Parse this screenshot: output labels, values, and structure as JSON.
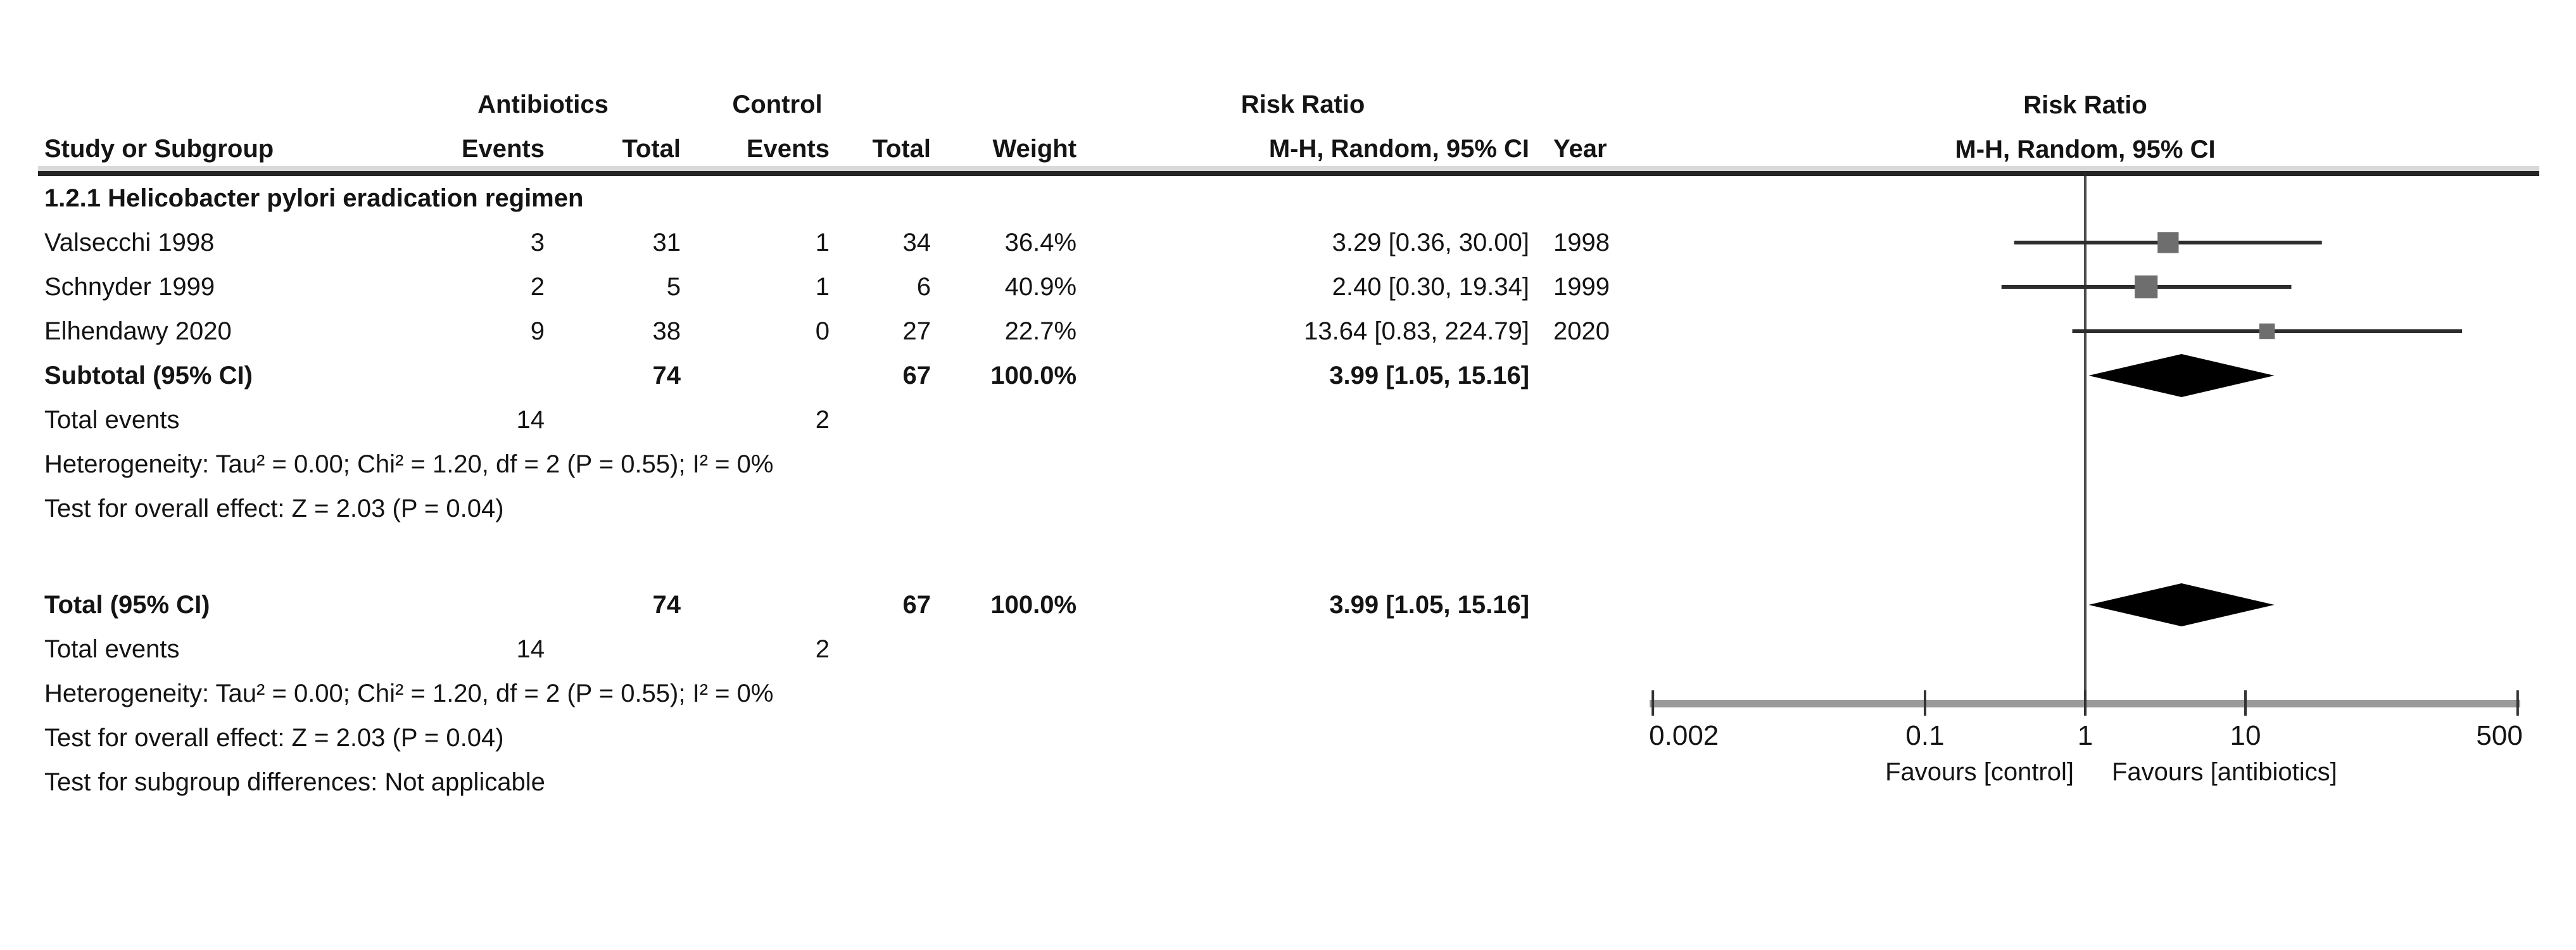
{
  "figure": {
    "header": {
      "group_antibiotics": "Antibiotics",
      "group_control": "Control",
      "group_risk_ratio": "Risk Ratio",
      "columns": [
        "Study or Subgroup",
        "Events",
        "Total",
        "Events",
        "Total",
        "Weight",
        "M-H, Random, 95% CI",
        "Year"
      ],
      "plot_title_line1": "Risk Ratio",
      "plot_title_line2": "M-H, Random, 95% CI"
    },
    "subgroup_label": "1.2.1 Helicobacter pylori eradication regimen",
    "subgroup_stats": {
      "total_events_label": "Total events",
      "events_antibiotics": "14",
      "events_control": "2",
      "heterogeneity": "Heterogeneity: Tau² = 0.00; Chi² = 1.20, df = 2 (P = 0.55); I² = 0%",
      "overall_effect": "Test for overall effect: Z = 2.03 (P = 0.04)"
    },
    "total_stats": {
      "total_events_label": "Total events",
      "events_antibiotics": "14",
      "events_control": "2",
      "heterogeneity": "Heterogeneity: Tau² = 0.00; Chi² = 1.20, df = 2 (P = 0.55); I² = 0%",
      "overall_effect": "Test for overall effect: Z = 2.03 (P = 0.04)",
      "subgroup_differences": "Test for subgroup differences: Not applicable"
    }
  },
  "chart_data": {
    "type": "forest",
    "effect_measure": "Risk Ratio",
    "method": "M-H, Random, 95% CI",
    "x_scale": "log",
    "studies": [
      {
        "name": "Valsecchi 1998",
        "events_antibiotics": "3",
        "total_antibiotics": "31",
        "events_control": "1",
        "total_control": "34",
        "weight": "36.4%",
        "estimate_text": "3.29 [0.36, 30.00]",
        "rr": 3.29,
        "ci_low": 0.36,
        "ci_high": 30.0,
        "year": "1998"
      },
      {
        "name": "Schnyder 1999",
        "events_antibiotics": "2",
        "total_antibiotics": "5",
        "events_control": "1",
        "total_control": "6",
        "weight": "40.9%",
        "estimate_text": "2.40 [0.30, 19.34]",
        "rr": 2.4,
        "ci_low": 0.3,
        "ci_high": 19.34,
        "year": "1999"
      },
      {
        "name": "Elhendawy 2020",
        "events_antibiotics": "9",
        "total_antibiotics": "38",
        "events_control": "0",
        "total_control": "27",
        "weight": "22.7%",
        "estimate_text": "13.64 [0.83, 224.79]",
        "rr": 13.64,
        "ci_low": 0.83,
        "ci_high": 224.79,
        "year": "2020"
      }
    ],
    "subtotal": {
      "label": "Subtotal (95% CI)",
      "total_antibiotics": "74",
      "total_control": "67",
      "weight": "100.0%",
      "estimate_text": "3.99 [1.05, 15.16]",
      "rr": 3.99,
      "ci_low": 1.05,
      "ci_high": 15.16
    },
    "total": {
      "label": "Total (95% CI)",
      "total_antibiotics": "74",
      "total_control": "67",
      "weight": "100.0%",
      "estimate_text": "3.99 [1.05, 15.16]",
      "rr": 3.99,
      "ci_low": 1.05,
      "ci_high": 15.16
    },
    "axis": {
      "ticks": [
        0.002,
        0.1,
        1,
        10,
        500
      ],
      "tick_labels": [
        "0.002",
        "0.1",
        "1",
        "10",
        "500"
      ],
      "null_value": 1,
      "label_left": "Favours [control]",
      "label_right": "Favours [antibiotics]"
    },
    "colors": {
      "square": "#6e6e6e",
      "ci_line": "#2d2d2d",
      "diamond": "#000000",
      "axis_bar": "#9a9a9a",
      "tick": "#333333",
      "null_line": "#4d4d4d",
      "text": "#141414"
    }
  }
}
